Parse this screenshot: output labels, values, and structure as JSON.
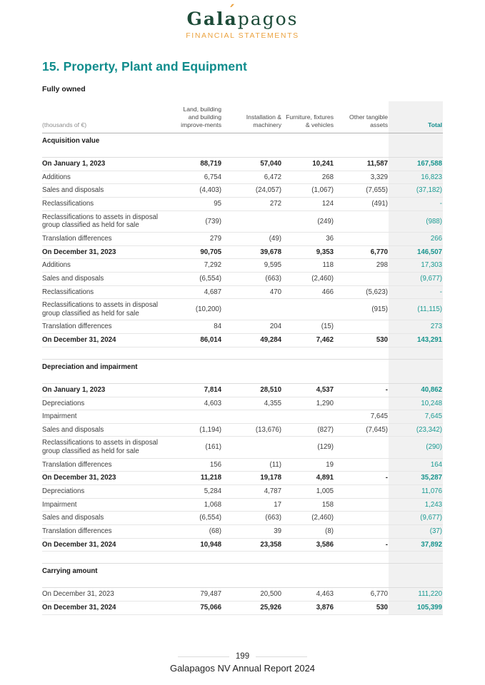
{
  "brand": {
    "logo_bold": "Gal",
    "logo_accent_base": "a",
    "logo_accent_mark": "´",
    "logo_rest": "pagos",
    "tagline": "FINANCIAL STATEMENTS",
    "logo_color": "#1d4b38",
    "accent_color": "#eba23f"
  },
  "page": {
    "title": "15. Property, Plant and Equipment",
    "subtitle": "Fully owned",
    "page_number": "199",
    "footer_text": "Galapagos NV Annual Report 2024",
    "heading_color": "#0f8c8c",
    "total_color": "#1a9a92"
  },
  "table": {
    "unit_label": "(thousands of €)",
    "columns": [
      "Land, building and building improve-ments",
      "Installation & machinery",
      "Furniture, fixtures & vehicles",
      "Other tangible assets",
      "Total"
    ],
    "sections": [
      {
        "title": "Acquisition value",
        "rows": [
          {
            "label": "On January 1, 2023",
            "bold": true,
            "values": [
              "88,719",
              "57,040",
              "10,241",
              "11,587",
              "167,588"
            ]
          },
          {
            "label": "Additions",
            "bold": false,
            "values": [
              "6,754",
              "6,472",
              "268",
              "3,329",
              "16,823"
            ]
          },
          {
            "label": "Sales and disposals",
            "bold": false,
            "values": [
              "(4,403)",
              "(24,057)",
              "(1,067)",
              "(7,655)",
              "(37,182)"
            ]
          },
          {
            "label": "Reclassifications",
            "bold": false,
            "values": [
              "95",
              "272",
              "124",
              "(491)",
              "-"
            ]
          },
          {
            "label": "Reclassifications to assets in disposal group classified as held for sale",
            "bold": false,
            "values": [
              "(739)",
              "",
              "(249)",
              "",
              "(988)"
            ]
          },
          {
            "label": "Translation differences",
            "bold": false,
            "values": [
              "279",
              "(49)",
              "36",
              "",
              "266"
            ]
          },
          {
            "label": "On December 31, 2023",
            "bold": true,
            "values": [
              "90,705",
              "39,678",
              "9,353",
              "6,770",
              "146,507"
            ]
          },
          {
            "label": "Additions",
            "bold": false,
            "values": [
              "7,292",
              "9,595",
              "118",
              "298",
              "17,303"
            ]
          },
          {
            "label": "Sales and disposals",
            "bold": false,
            "values": [
              "(6,554)",
              "(663)",
              "(2,460)",
              "",
              "(9,677)"
            ]
          },
          {
            "label": "Reclassifications",
            "bold": false,
            "values": [
              "4,687",
              "470",
              "466",
              "(5,623)",
              "-"
            ]
          },
          {
            "label": "Reclassifications to assets in disposal group classified as held for sale",
            "bold": false,
            "values": [
              "(10,200)",
              "",
              "",
              "(915)",
              "(11,115)"
            ]
          },
          {
            "label": "Translation differences",
            "bold": false,
            "values": [
              "84",
              "204",
              "(15)",
              "",
              "273"
            ]
          },
          {
            "label": "On December 31, 2024",
            "bold": true,
            "values": [
              "86,014",
              "49,284",
              "7,462",
              "530",
              "143,291"
            ]
          }
        ]
      },
      {
        "title": "Depreciation and impairment",
        "rows": [
          {
            "label": "On January 1, 2023",
            "bold": true,
            "values": [
              "7,814",
              "28,510",
              "4,537",
              "-",
              "40,862"
            ]
          },
          {
            "label": "Depreciations",
            "bold": false,
            "values": [
              "4,603",
              "4,355",
              "1,290",
              "",
              "10,248"
            ]
          },
          {
            "label": "Impairment",
            "bold": false,
            "values": [
              "",
              "",
              "",
              "7,645",
              "7,645"
            ]
          },
          {
            "label": "Sales and disposals",
            "bold": false,
            "values": [
              "(1,194)",
              "(13,676)",
              "(827)",
              "(7,645)",
              "(23,342)"
            ]
          },
          {
            "label": "Reclassifications to assets in disposal group classified as held for sale",
            "bold": false,
            "values": [
              "(161)",
              "",
              "(129)",
              "",
              "(290)"
            ]
          },
          {
            "label": "Translation differences",
            "bold": false,
            "values": [
              "156",
              "(11)",
              "19",
              "",
              "164"
            ]
          },
          {
            "label": "On December 31, 2023",
            "bold": true,
            "values": [
              "11,218",
              "19,178",
              "4,891",
              "-",
              "35,287"
            ]
          },
          {
            "label": "Depreciations",
            "bold": false,
            "values": [
              "5,284",
              "4,787",
              "1,005",
              "",
              "11,076"
            ]
          },
          {
            "label": "Impairment",
            "bold": false,
            "values": [
              "1,068",
              "17",
              "158",
              "",
              "1,243"
            ]
          },
          {
            "label": "Sales and disposals",
            "bold": false,
            "values": [
              "(6,554)",
              "(663)",
              "(2,460)",
              "",
              "(9,677)"
            ]
          },
          {
            "label": "Translation differences",
            "bold": false,
            "values": [
              "(68)",
              "39",
              "(8)",
              "",
              "(37)"
            ]
          },
          {
            "label": "On December 31, 2024",
            "bold": true,
            "values": [
              "10,948",
              "23,358",
              "3,586",
              "-",
              "37,892"
            ]
          }
        ]
      },
      {
        "title": "Carrying amount",
        "rows": [
          {
            "label": "On December 31, 2023",
            "bold": false,
            "values": [
              "79,487",
              "20,500",
              "4,463",
              "6,770",
              "111,220"
            ]
          },
          {
            "label": "On December 31, 2024",
            "bold": true,
            "values": [
              "75,066",
              "25,926",
              "3,876",
              "530",
              "105,399"
            ]
          }
        ]
      }
    ]
  }
}
